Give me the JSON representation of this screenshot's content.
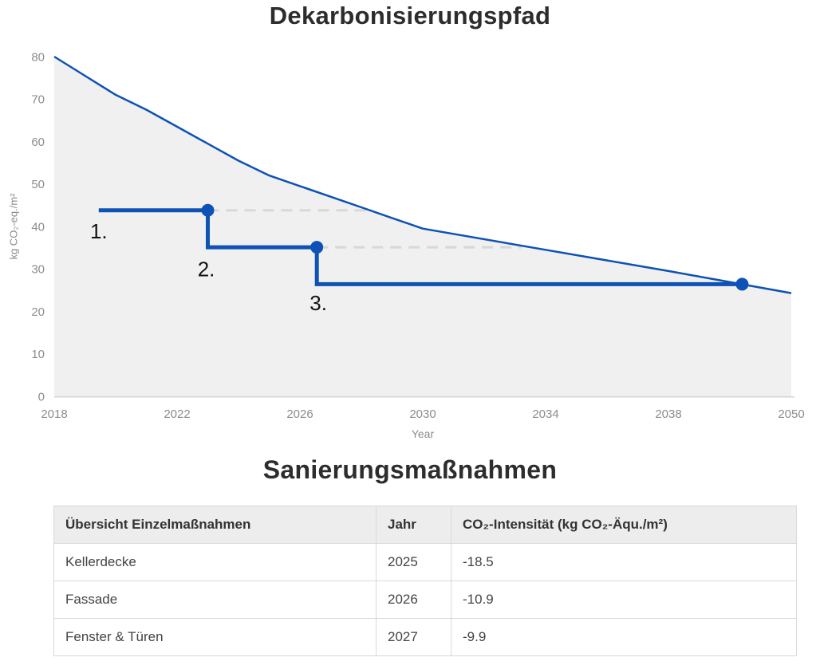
{
  "chart_data": {
    "type": "line",
    "title": "Dekarbonisierungspfad",
    "xlabel": "Year",
    "ylabel": "kg CO₂-eq./m²",
    "x_ticks": [
      "2018",
      "2022",
      "2026",
      "2030",
      "2034",
      "2038",
      "2050"
    ],
    "x_tick_years": [
      2018,
      2022,
      2026,
      2030,
      2034,
      2038,
      2050
    ],
    "y_ticks": [
      "0",
      "10",
      "20",
      "30",
      "40",
      "50",
      "60",
      "70",
      "80"
    ],
    "y_tick_values": [
      0,
      10,
      20,
      30,
      40,
      50,
      60,
      70,
      80
    ],
    "ylim": [
      0,
      80
    ],
    "grid": false,
    "legend": "none",
    "series": [
      {
        "name": "decarbonization-target-curve",
        "style": "solid line with light gray area fill",
        "points": [
          [
            2018,
            80
          ],
          [
            2019,
            75.5
          ],
          [
            2020,
            71
          ],
          [
            2021,
            67.5
          ],
          [
            2022,
            63.5
          ],
          [
            2023,
            59.5
          ],
          [
            2024,
            55.5
          ],
          [
            2025,
            52
          ],
          [
            2026,
            49.5
          ],
          [
            2027,
            47
          ],
          [
            2028,
            44.5
          ],
          [
            2029,
            42
          ],
          [
            2030,
            39.5
          ],
          [
            2034,
            34.5
          ],
          [
            2038,
            29.5
          ],
          [
            2050,
            24.3
          ]
        ]
      },
      {
        "name": "renovation-step-path",
        "style": "thick step line with circular markers",
        "points": [
          [
            2019.45,
            43.8
          ],
          [
            2023,
            43.8
          ],
          [
            2023,
            35.1
          ],
          [
            2026.55,
            35.1
          ],
          [
            2026.55,
            26.4
          ],
          [
            2045.2,
            26.4
          ]
        ],
        "markers": [
          [
            2023,
            43.8
          ],
          [
            2026.55,
            35.1
          ],
          [
            2045.2,
            26.4
          ]
        ]
      }
    ],
    "dashed_guides": [
      {
        "value": 43.8,
        "from_year": 2023,
        "to_year": 2028.15
      },
      {
        "value": 35.1,
        "from_year": 2026.55,
        "to_year": 2033.2
      }
    ],
    "annotations": [
      {
        "text": "1.",
        "year": 2019.45,
        "value": 38.9
      },
      {
        "text": "2.",
        "year": 2022.95,
        "value": 30.0
      },
      {
        "text": "3.",
        "year": 2026.6,
        "value": 22.0
      }
    ]
  },
  "table": {
    "title": "Sanierungsmaßnahmen",
    "columns": [
      "Übersicht Einzelmaßnahmen",
      "Jahr",
      "CO₂-Intensität (kg CO₂-Äqu./m²)"
    ],
    "rows": [
      [
        "Kellerdecke",
        "2025",
        "-18.5"
      ],
      [
        "Fassade",
        "2026",
        "-10.9"
      ],
      [
        "Fenster & Türen",
        "2027",
        "-9.9"
      ]
    ]
  },
  "colors": {
    "accent_blue": "#0d52b4",
    "area_fill": "#f0f0f0",
    "dashed_guide": "#d8d8d8",
    "axis_line": "#d4d4d4",
    "axis_text": "#8c8c8c",
    "annotation_text": "#121212",
    "title_text": "#2d2d2d",
    "table_border": "#d9d9d9",
    "table_header_bg": "#ededed"
  }
}
